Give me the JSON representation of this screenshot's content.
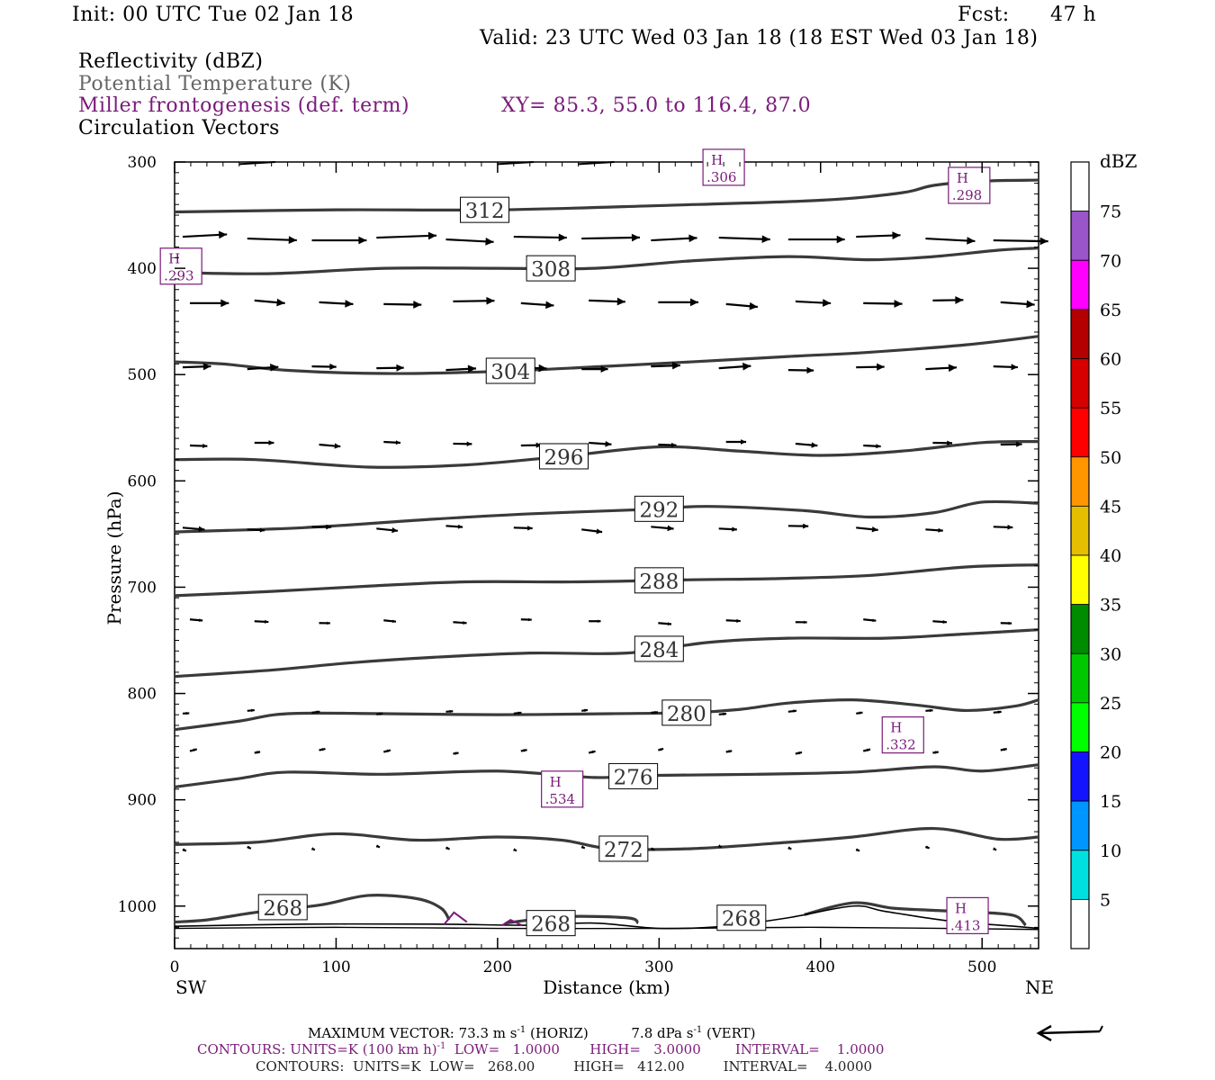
{
  "header": {
    "init": "Init: 00 UTC Tue 02 Jan 18",
    "fcst_label": "Fcst:",
    "fcst_value": "47 h",
    "valid": "Valid: 23 UTC Wed 03 Jan 18 (18 EST Wed 03 Jan 18)",
    "field1": "Reflectivity (dBZ)",
    "field2": "Potential Temperature (K)",
    "field3": "Miller frontogenesis (def. term)",
    "xy": "XY=  85.3, 55.0 to 116.4, 87.0",
    "field4": "Circulation Vectors"
  },
  "colors": {
    "purple": "#7a1a7a",
    "contour": "#3a3a3a",
    "grey_text": "#666666"
  },
  "chart_data": {
    "type": "cross-section",
    "xlabel": "Distance (km)",
    "ylabel": "Pressure (hPa)",
    "xlim": [
      0,
      535
    ],
    "ylim": [
      1040,
      300
    ],
    "x_ticks": [
      0,
      100,
      200,
      300,
      400,
      500
    ],
    "y_ticks": [
      300,
      400,
      500,
      600,
      700,
      800,
      900,
      1000
    ],
    "x_endpoints": [
      "SW",
      "NE"
    ],
    "theta_contours": [
      {
        "label": "312",
        "label_x": 192,
        "pts": [
          [
            0,
            347
          ],
          [
            100,
            345
          ],
          [
            200,
            345
          ],
          [
            300,
            341
          ],
          [
            400,
            336
          ],
          [
            450,
            329
          ],
          [
            470,
            322
          ],
          [
            500,
            318
          ],
          [
            535,
            317
          ]
        ]
      },
      {
        "label": "308",
        "label_x": 233,
        "pts": [
          [
            0,
            404
          ],
          [
            60,
            405
          ],
          [
            130,
            400
          ],
          [
            200,
            400
          ],
          [
            260,
            400
          ],
          [
            320,
            393
          ],
          [
            380,
            389
          ],
          [
            430,
            392
          ],
          [
            470,
            389
          ],
          [
            510,
            383
          ],
          [
            535,
            381
          ]
        ]
      },
      {
        "label": "304",
        "label_x": 208,
        "pts": [
          [
            0,
            488
          ],
          [
            30,
            490
          ],
          [
            70,
            496
          ],
          [
            130,
            499
          ],
          [
            200,
            497
          ],
          [
            270,
            492
          ],
          [
            320,
            488
          ],
          [
            380,
            483
          ],
          [
            430,
            479
          ],
          [
            490,
            472
          ],
          [
            535,
            464
          ]
        ]
      },
      {
        "label": "296",
        "label_x": 241,
        "pts": [
          [
            0,
            580
          ],
          [
            50,
            580
          ],
          [
            120,
            587
          ],
          [
            180,
            585
          ],
          [
            240,
            577
          ],
          [
            300,
            568
          ],
          [
            350,
            572
          ],
          [
            400,
            576
          ],
          [
            450,
            572
          ],
          [
            500,
            564
          ],
          [
            535,
            563
          ]
        ]
      },
      {
        "label": "292",
        "label_x": 300,
        "pts": [
          [
            0,
            648
          ],
          [
            80,
            644
          ],
          [
            160,
            636
          ],
          [
            220,
            631
          ],
          [
            290,
            627
          ],
          [
            330,
            624
          ],
          [
            390,
            628
          ],
          [
            430,
            634
          ],
          [
            470,
            630
          ],
          [
            500,
            620
          ],
          [
            535,
            621
          ]
        ]
      },
      {
        "label": "288",
        "label_x": 300,
        "pts": [
          [
            0,
            708
          ],
          [
            60,
            704
          ],
          [
            120,
            699
          ],
          [
            180,
            695
          ],
          [
            250,
            695
          ],
          [
            320,
            693
          ],
          [
            370,
            692
          ],
          [
            430,
            689
          ],
          [
            490,
            681
          ],
          [
            535,
            679
          ]
        ]
      },
      {
        "label": "284",
        "label_x": 300,
        "pts": [
          [
            0,
            784
          ],
          [
            60,
            778
          ],
          [
            110,
            771
          ],
          [
            160,
            766
          ],
          [
            220,
            762
          ],
          [
            280,
            762
          ],
          [
            330,
            752
          ],
          [
            380,
            748
          ],
          [
            440,
            748
          ],
          [
            490,
            744
          ],
          [
            535,
            740
          ]
        ]
      },
      {
        "label": "280",
        "label_x": 317,
        "pts": [
          [
            0,
            834
          ],
          [
            40,
            826
          ],
          [
            70,
            819
          ],
          [
            130,
            819
          ],
          [
            200,
            820
          ],
          [
            270,
            819
          ],
          [
            320,
            818
          ],
          [
            350,
            815
          ],
          [
            380,
            809
          ],
          [
            420,
            806
          ],
          [
            460,
            811
          ],
          [
            490,
            816
          ],
          [
            520,
            812
          ],
          [
            535,
            806
          ]
        ]
      },
      {
        "label": "276",
        "label_x": 284,
        "pts": [
          [
            0,
            888
          ],
          [
            40,
            880
          ],
          [
            70,
            874
          ],
          [
            130,
            876
          ],
          [
            200,
            873
          ],
          [
            260,
            879
          ],
          [
            300,
            877
          ],
          [
            360,
            876
          ],
          [
            420,
            874
          ],
          [
            470,
            869
          ],
          [
            500,
            873
          ],
          [
            535,
            867
          ]
        ]
      },
      {
        "label": "272",
        "label_x": 278,
        "pts": [
          [
            0,
            942
          ],
          [
            50,
            940
          ],
          [
            100,
            932
          ],
          [
            150,
            938
          ],
          [
            200,
            935
          ],
          [
            240,
            938
          ],
          [
            270,
            946
          ],
          [
            320,
            946
          ],
          [
            380,
            940
          ],
          [
            420,
            935
          ],
          [
            470,
            927
          ],
          [
            510,
            937
          ],
          [
            535,
            935
          ]
        ]
      }
    ],
    "theta_268_label_points": [
      [
        67,
        1001
      ],
      [
        233,
        1016
      ],
      [
        351,
        1011
      ]
    ],
    "ground_lines_thin": [
      [
        [
          0,
          1019
        ],
        [
          80,
          1017
        ],
        [
          160,
          1017
        ],
        [
          220,
          1018
        ],
        [
          260,
          1016
        ],
        [
          300,
          1021
        ],
        [
          340,
          1019
        ],
        [
          380,
          1011
        ],
        [
          420,
          1000
        ],
        [
          440,
          1005
        ],
        [
          480,
          1014
        ],
        [
          520,
          1019
        ],
        [
          535,
          1021
        ]
      ]
    ],
    "frontogenesis_maxima": [
      {
        "label": "H",
        "value": ".293",
        "x": 4,
        "p": 398
      },
      {
        "label": "H",
        "value": ".306",
        "x": 340,
        "p": 305
      },
      {
        "label": "H",
        "value": ".298",
        "x": 492,
        "p": 322
      },
      {
        "label": "H",
        "value": ".534",
        "x": 240,
        "p": 890
      },
      {
        "label": "H",
        "value": ".332",
        "x": 451,
        "p": 839
      },
      {
        "label": "H",
        "value": ".413",
        "x": 491,
        "p": 1009
      }
    ],
    "vector_rows_p": [
      300,
      372,
      432,
      494,
      565,
      644,
      732,
      818,
      855,
      945,
      1012
    ],
    "colorbar": {
      "title": "dBZ",
      "labels": [
        "5",
        "10",
        "15",
        "20",
        "25",
        "30",
        "35",
        "40",
        "45",
        "50",
        "55",
        "60",
        "65",
        "70",
        "75"
      ],
      "colors": [
        "#ffffff",
        "#00e0e0",
        "#0096ff",
        "#1414ff",
        "#00ff00",
        "#00c800",
        "#008c00",
        "#ffff00",
        "#e6be00",
        "#ff9600",
        "#ff0000",
        "#d70000",
        "#b40000",
        "#ff00ff",
        "#9955c9",
        "#ffffff"
      ]
    }
  },
  "footer": {
    "max_vector_prefix": "MAXIMUM VECTOR:  73.3 m s",
    "max_vector_sup": "-1",
    "max_vector_mid": " (HORIZ)          7.8 dPa s",
    "max_vector_sup2": "-1",
    "max_vector_suffix": " (VERT)",
    "contours1_prefix": "CONTOURS:  UNITS=K (100 km h)",
    "contours1_sup": "-1",
    "contours1_suffix": "  LOW=   1.0000       HIGH=   3.0000        INTERVAL=    1.0000",
    "contours2": "CONTOURS:  UNITS=K  LOW=   268.00         HIGH=   412.00         INTERVAL=    4.0000"
  }
}
